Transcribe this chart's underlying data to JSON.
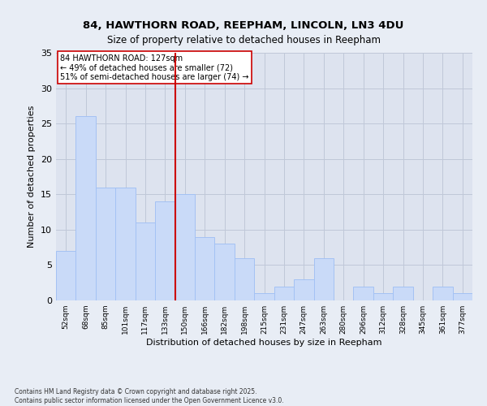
{
  "title": "84, HAWTHORN ROAD, REEPHAM, LINCOLN, LN3 4DU",
  "subtitle": "Size of property relative to detached houses in Reepham",
  "xlabel": "Distribution of detached houses by size in Reepham",
  "ylabel": "Number of detached properties",
  "categories": [
    "52sqm",
    "68sqm",
    "85sqm",
    "101sqm",
    "117sqm",
    "133sqm",
    "150sqm",
    "166sqm",
    "182sqm",
    "198sqm",
    "215sqm",
    "231sqm",
    "247sqm",
    "263sqm",
    "280sqm",
    "296sqm",
    "312sqm",
    "328sqm",
    "345sqm",
    "361sqm",
    "377sqm"
  ],
  "values": [
    7,
    26,
    16,
    16,
    11,
    14,
    15,
    9,
    8,
    6,
    1,
    2,
    3,
    6,
    0,
    2,
    1,
    2,
    0,
    2,
    1
  ],
  "bar_color": "#c9daf8",
  "bar_edge_color": "#a4c2f4",
  "bar_width": 1.0,
  "vline_x": 5.5,
  "vline_color": "#cc0000",
  "annotation_text": "84 HAWTHORN ROAD: 127sqm\n← 49% of detached houses are smaller (72)\n51% of semi-detached houses are larger (74) →",
  "annotation_box_color": "#ffffff",
  "annotation_box_edge": "#cc0000",
  "ylim": [
    0,
    35
  ],
  "yticks": [
    0,
    5,
    10,
    15,
    20,
    25,
    30,
    35
  ],
  "grid_color": "#c0c8d8",
  "bg_color": "#dde3ef",
  "fig_bg_color": "#e8edf5",
  "title_fontsize": 9.5,
  "subtitle_fontsize": 8.5,
  "footer": "Contains HM Land Registry data © Crown copyright and database right 2025.\nContains public sector information licensed under the Open Government Licence v3.0."
}
